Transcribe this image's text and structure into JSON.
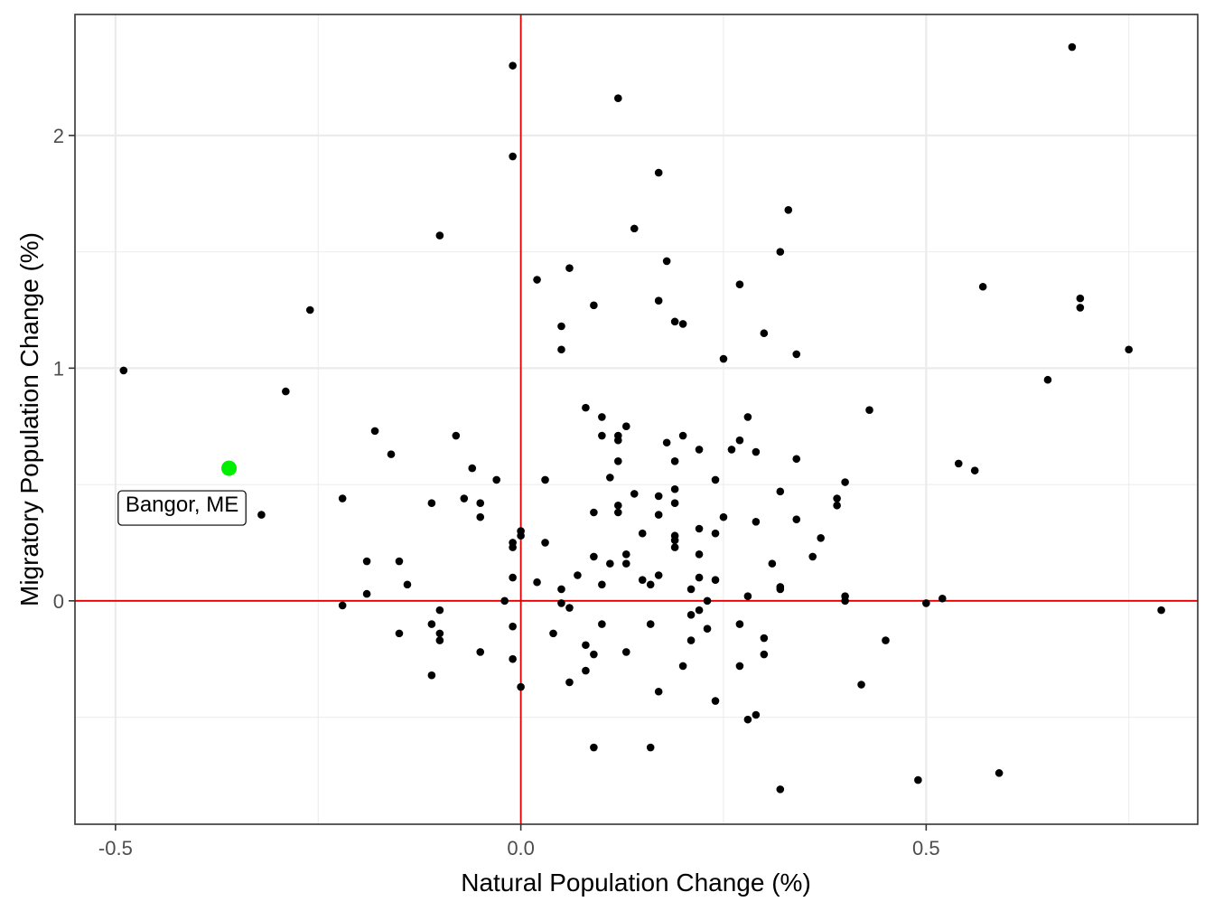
{
  "chart_data": {
    "type": "scatter",
    "xlabel": "Natural Population Change (%)",
    "ylabel": "Migratory Population Change (%)",
    "xlim": [
      -0.55,
      0.835
    ],
    "ylim": [
      -0.96,
      2.52
    ],
    "x_ticks": [
      {
        "value": -0.5,
        "label": "-0.5"
      },
      {
        "value": 0.0,
        "label": "0.0"
      },
      {
        "value": 0.5,
        "label": "0.5"
      }
    ],
    "y_ticks": [
      {
        "value": 0,
        "label": "0"
      },
      {
        "value": 1,
        "label": "1"
      },
      {
        "value": 2,
        "label": "2"
      }
    ],
    "x_minor_grid": [
      -0.25,
      0.25,
      0.75
    ],
    "y_minor_grid": [
      -0.5,
      0.5,
      1.5
    ],
    "grid": true,
    "reference_lines": {
      "x": 0,
      "y": 0,
      "color": "#e00000"
    },
    "point_color": "#000000",
    "highlight_color": "#00ee00",
    "highlight": {
      "x": -0.36,
      "y": 0.57
    },
    "annotation": {
      "text": "Bangor, ME",
      "x": -0.36,
      "y": 0.57
    },
    "points": [
      [
        -0.49,
        0.99
      ],
      [
        -0.29,
        0.9
      ],
      [
        -0.26,
        1.25
      ],
      [
        -0.32,
        0.37
      ],
      [
        -0.22,
        0.44
      ],
      [
        -0.22,
        -0.02
      ],
      [
        -0.18,
        0.73
      ],
      [
        -0.16,
        0.63
      ],
      [
        -0.19,
        0.17
      ],
      [
        -0.19,
        0.03
      ],
      [
        -0.15,
        0.17
      ],
      [
        -0.14,
        0.07
      ],
      [
        -0.15,
        -0.14
      ],
      [
        -0.1,
        1.57
      ],
      [
        -0.11,
        0.42
      ],
      [
        -0.11,
        -0.1
      ],
      [
        -0.1,
        -0.04
      ],
      [
        -0.1,
        -0.14
      ],
      [
        -0.1,
        -0.17
      ],
      [
        -0.11,
        -0.32
      ],
      [
        -0.08,
        0.71
      ],
      [
        -0.07,
        0.44
      ],
      [
        -0.06,
        0.57
      ],
      [
        -0.05,
        0.42
      ],
      [
        -0.05,
        0.36
      ],
      [
        -0.05,
        -0.22
      ],
      [
        -0.03,
        0.52
      ],
      [
        -0.02,
        0.0
      ],
      [
        -0.01,
        2.3
      ],
      [
        -0.01,
        1.91
      ],
      [
        -0.01,
        0.25
      ],
      [
        -0.01,
        0.23
      ],
      [
        -0.01,
        0.1
      ],
      [
        -0.01,
        -0.11
      ],
      [
        -0.01,
        -0.25
      ],
      [
        0.0,
        0.3
      ],
      [
        0.0,
        0.28
      ],
      [
        0.0,
        -0.37
      ],
      [
        0.02,
        1.38
      ],
      [
        0.02,
        0.08
      ],
      [
        0.03,
        0.52
      ],
      [
        0.03,
        0.25
      ],
      [
        0.04,
        -0.14
      ],
      [
        0.05,
        1.18
      ],
      [
        0.05,
        1.08
      ],
      [
        0.05,
        0.05
      ],
      [
        0.05,
        -0.01
      ],
      [
        0.06,
        1.43
      ],
      [
        0.06,
        -0.03
      ],
      [
        0.06,
        -0.35
      ],
      [
        0.07,
        0.11
      ],
      [
        0.08,
        0.83
      ],
      [
        0.08,
        -0.19
      ],
      [
        0.08,
        -0.3
      ],
      [
        0.09,
        1.27
      ],
      [
        0.09,
        0.38
      ],
      [
        0.09,
        0.19
      ],
      [
        0.09,
        -0.23
      ],
      [
        0.09,
        -0.63
      ],
      [
        0.1,
        0.79
      ],
      [
        0.1,
        0.71
      ],
      [
        0.1,
        0.07
      ],
      [
        0.1,
        -0.1
      ],
      [
        0.11,
        0.53
      ],
      [
        0.11,
        0.16
      ],
      [
        0.12,
        2.16
      ],
      [
        0.12,
        0.71
      ],
      [
        0.12,
        0.69
      ],
      [
        0.12,
        0.6
      ],
      [
        0.12,
        0.41
      ],
      [
        0.12,
        0.38
      ],
      [
        0.13,
        0.75
      ],
      [
        0.13,
        0.2
      ],
      [
        0.13,
        0.16
      ],
      [
        0.13,
        -0.22
      ],
      [
        0.14,
        1.6
      ],
      [
        0.14,
        0.46
      ],
      [
        0.15,
        0.29
      ],
      [
        0.15,
        0.09
      ],
      [
        0.16,
        0.07
      ],
      [
        0.16,
        -0.1
      ],
      [
        0.16,
        -0.63
      ],
      [
        0.17,
        1.84
      ],
      [
        0.17,
        1.29
      ],
      [
        0.17,
        0.45
      ],
      [
        0.17,
        0.37
      ],
      [
        0.17,
        0.11
      ],
      [
        0.17,
        -0.39
      ],
      [
        0.18,
        1.46
      ],
      [
        0.18,
        0.68
      ],
      [
        0.19,
        1.2
      ],
      [
        0.19,
        0.6
      ],
      [
        0.19,
        0.48
      ],
      [
        0.19,
        0.42
      ],
      [
        0.19,
        0.28
      ],
      [
        0.19,
        0.26
      ],
      [
        0.19,
        0.23
      ],
      [
        0.2,
        1.19
      ],
      [
        0.2,
        0.71
      ],
      [
        0.2,
        -0.28
      ],
      [
        0.21,
        0.05
      ],
      [
        0.21,
        -0.06
      ],
      [
        0.21,
        -0.17
      ],
      [
        0.22,
        0.65
      ],
      [
        0.22,
        0.31
      ],
      [
        0.22,
        0.2
      ],
      [
        0.22,
        0.1
      ],
      [
        0.22,
        -0.04
      ],
      [
        0.23,
        0.0
      ],
      [
        0.23,
        -0.12
      ],
      [
        0.24,
        0.52
      ],
      [
        0.24,
        0.29
      ],
      [
        0.24,
        0.09
      ],
      [
        0.24,
        -0.43
      ],
      [
        0.25,
        1.04
      ],
      [
        0.25,
        0.36
      ],
      [
        0.26,
        0.65
      ],
      [
        0.27,
        1.36
      ],
      [
        0.27,
        0.69
      ],
      [
        0.27,
        -0.1
      ],
      [
        0.27,
        -0.28
      ],
      [
        0.28,
        0.79
      ],
      [
        0.28,
        0.02
      ],
      [
        0.28,
        -0.51
      ],
      [
        0.29,
        0.64
      ],
      [
        0.29,
        0.34
      ],
      [
        0.29,
        -0.49
      ],
      [
        0.3,
        1.15
      ],
      [
        0.3,
        -0.16
      ],
      [
        0.3,
        -0.23
      ],
      [
        0.31,
        0.16
      ],
      [
        0.32,
        1.5
      ],
      [
        0.32,
        0.47
      ],
      [
        0.32,
        0.06
      ],
      [
        0.32,
        0.05
      ],
      [
        0.32,
        -0.81
      ],
      [
        0.33,
        1.68
      ],
      [
        0.34,
        1.06
      ],
      [
        0.34,
        0.61
      ],
      [
        0.34,
        0.35
      ],
      [
        0.36,
        0.19
      ],
      [
        0.37,
        0.27
      ],
      [
        0.39,
        0.44
      ],
      [
        0.39,
        0.41
      ],
      [
        0.4,
        0.51
      ],
      [
        0.4,
        0.02
      ],
      [
        0.4,
        0.0
      ],
      [
        0.42,
        -0.36
      ],
      [
        0.43,
        0.82
      ],
      [
        0.45,
        -0.17
      ],
      [
        0.49,
        -0.77
      ],
      [
        0.5,
        -0.01
      ],
      [
        0.52,
        0.01
      ],
      [
        0.54,
        0.59
      ],
      [
        0.56,
        0.56
      ],
      [
        0.57,
        1.35
      ],
      [
        0.59,
        -0.74
      ],
      [
        0.65,
        0.95
      ],
      [
        0.68,
        2.38
      ],
      [
        0.69,
        1.3
      ],
      [
        0.69,
        1.26
      ],
      [
        0.75,
        1.08
      ],
      [
        0.79,
        -0.04
      ]
    ]
  }
}
